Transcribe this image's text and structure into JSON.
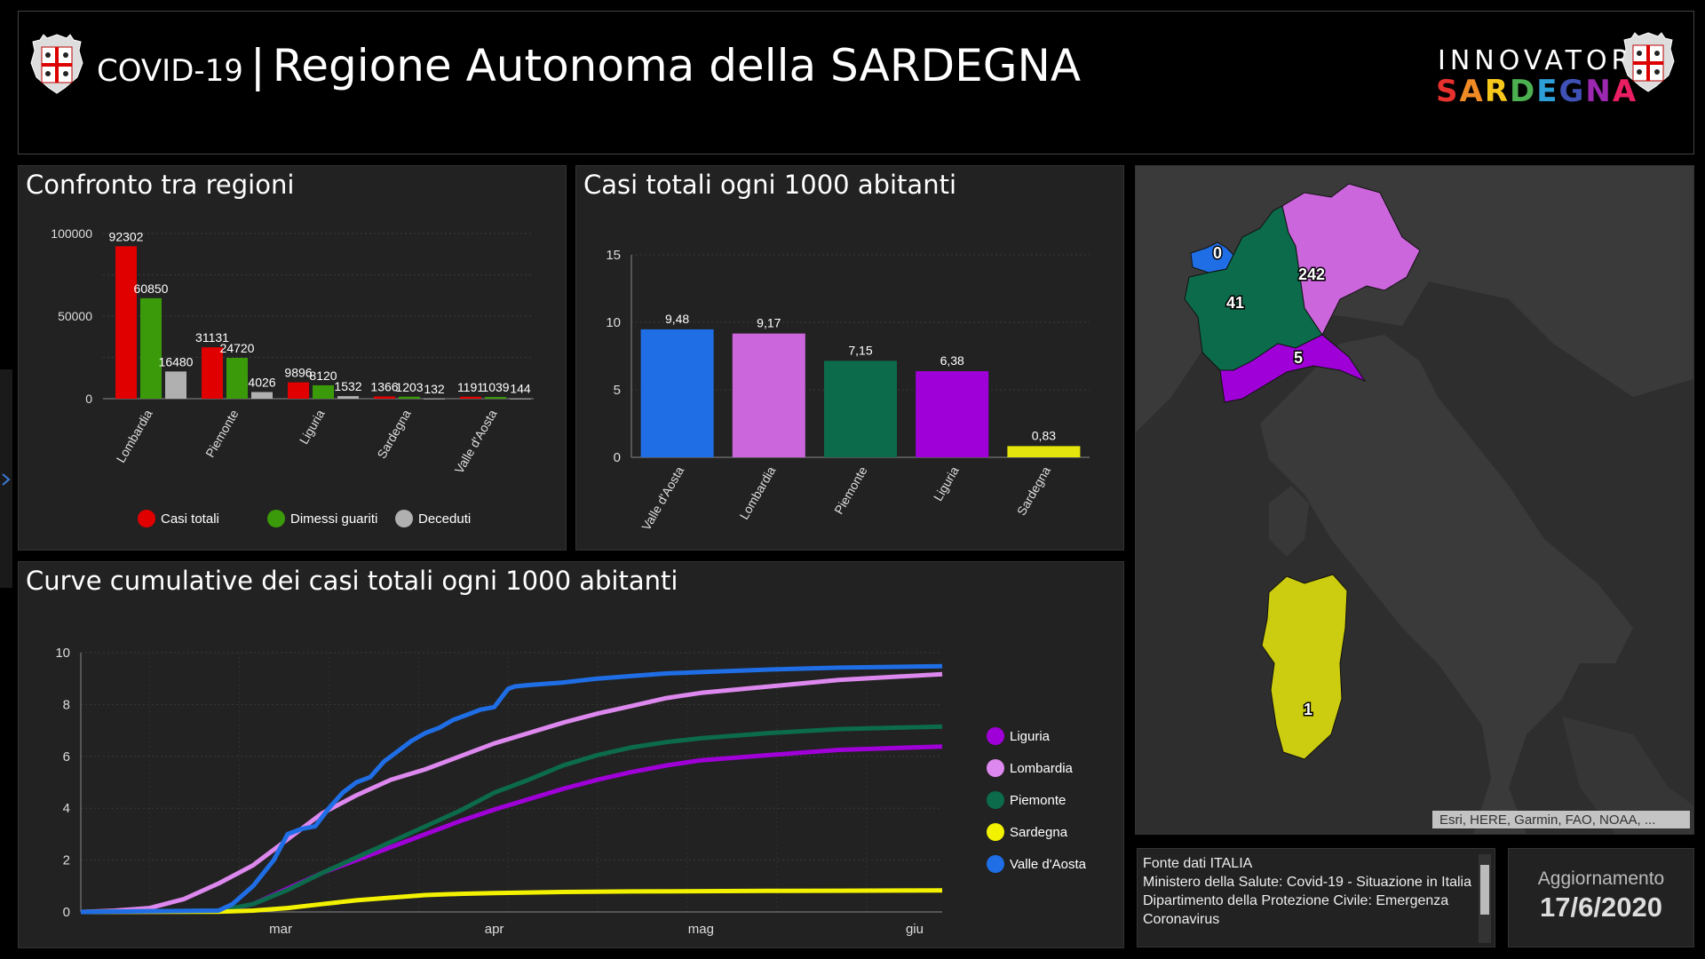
{
  "header": {
    "title_prefix": "COVID-19",
    "separator": "|",
    "title_main": "Regione Autonoma della SARDEGNA",
    "logo_top": "INNOVATORI",
    "logo_letters": [
      "S",
      "A",
      "R",
      "D",
      "E",
      "G",
      "N",
      "A"
    ],
    "logo_colors": [
      "#e6312d",
      "#f08a24",
      "#f7c81c",
      "#4caf50",
      "#2c9fd8",
      "#3f51b5",
      "#9c27b0",
      "#e91e63"
    ]
  },
  "panels": {
    "regions_title": "Confronto tra regioni",
    "per1000_title": "Casi totali ogni 1000 abitanti",
    "cumulative_title": "Curve cumulative dei casi totali ogni 1000 abitanti"
  },
  "chart_data": [
    {
      "type": "bar",
      "title": "Confronto tra regioni",
      "categories": [
        "Lombardia",
        "Piemonte",
        "Liguria",
        "Sardegna",
        "Valle d'Aosta"
      ],
      "series": [
        {
          "name": "Casi totali",
          "color": "#e00000",
          "values": [
            92302,
            31131,
            9896,
            1366,
            1191
          ]
        },
        {
          "name": "Dimessi guariti",
          "color": "#3a9a0a",
          "values": [
            60850,
            24720,
            8120,
            1203,
            1039
          ]
        },
        {
          "name": "Deceduti",
          "color": "#b0b0b0",
          "values": [
            16480,
            4026,
            1532,
            132,
            144
          ]
        }
      ],
      "yticks": [
        "0",
        "50000",
        "100000"
      ],
      "ylim": [
        0,
        100000
      ],
      "legend_position": "bottom"
    },
    {
      "type": "bar",
      "title": "Casi totali ogni 1000 abitanti",
      "categories": [
        "Valle d'Aosta",
        "Lombardia",
        "Piemonte",
        "Liguria",
        "Sardegna"
      ],
      "values": [
        9.48,
        9.17,
        7.15,
        6.38,
        0.83
      ],
      "labels": [
        "9,48",
        "9,17",
        "7,15",
        "6,38",
        "0,83"
      ],
      "colors": [
        "#1f6ee6",
        "#cc66dd",
        "#0b6b4a",
        "#a000d8",
        "#e5e50e"
      ],
      "yticks": [
        "0",
        "5",
        "10",
        "15"
      ],
      "ylim": [
        0,
        15
      ]
    },
    {
      "type": "line",
      "title": "Curve cumulative dei casi totali ogni 1000 abitanti",
      "xticks": [
        "mar",
        "apr",
        "mag",
        "giu"
      ],
      "xtick_days": [
        29,
        60,
        90,
        121
      ],
      "xlim": [
        0,
        125
      ],
      "yticks": [
        "0",
        "2",
        "4",
        "6",
        "8",
        "10"
      ],
      "ylim": [
        0,
        10
      ],
      "legend_position": "right",
      "series": [
        {
          "name": "Liguria",
          "color": "#a000d8",
          "x": [
            0,
            20,
            25,
            30,
            35,
            40,
            45,
            50,
            55,
            60,
            65,
            70,
            75,
            80,
            85,
            90,
            100,
            110,
            125
          ],
          "y": [
            0,
            0.02,
            0.3,
            0.9,
            1.5,
            2.0,
            2.5,
            3.0,
            3.5,
            3.95,
            4.35,
            4.75,
            5.1,
            5.4,
            5.65,
            5.85,
            6.05,
            6.25,
            6.38
          ]
        },
        {
          "name": "Lombardia",
          "color": "#dd88ee",
          "x": [
            0,
            5,
            10,
            15,
            20,
            25,
            30,
            35,
            40,
            45,
            50,
            55,
            60,
            65,
            70,
            75,
            80,
            85,
            90,
            100,
            110,
            125
          ],
          "y": [
            0,
            0.05,
            0.15,
            0.5,
            1.1,
            1.8,
            2.8,
            3.8,
            4.5,
            5.1,
            5.5,
            6.0,
            6.5,
            6.9,
            7.3,
            7.65,
            7.95,
            8.25,
            8.45,
            8.7,
            8.95,
            9.17
          ]
        },
        {
          "name": "Piemonte",
          "color": "#0b6b4a",
          "x": [
            0,
            20,
            25,
            30,
            35,
            40,
            45,
            50,
            55,
            60,
            65,
            70,
            75,
            80,
            85,
            90,
            100,
            110,
            125
          ],
          "y": [
            0,
            0.05,
            0.3,
            0.85,
            1.5,
            2.1,
            2.7,
            3.3,
            3.9,
            4.6,
            5.1,
            5.65,
            6.05,
            6.35,
            6.55,
            6.7,
            6.9,
            7.05,
            7.15
          ]
        },
        {
          "name": "Sardegna",
          "color": "#f2f200",
          "x": [
            0,
            20,
            25,
            30,
            35,
            40,
            45,
            50,
            55,
            60,
            70,
            80,
            90,
            100,
            110,
            125
          ],
          "y": [
            0,
            0.01,
            0.05,
            0.15,
            0.3,
            0.45,
            0.55,
            0.65,
            0.7,
            0.73,
            0.77,
            0.79,
            0.8,
            0.81,
            0.82,
            0.83
          ]
        },
        {
          "name": "Valle d'Aosta",
          "color": "#1f6ee6",
          "x": [
            0,
            20,
            22,
            25,
            28,
            30,
            32,
            34,
            36,
            38,
            40,
            42,
            44,
            46,
            48,
            50,
            52,
            54,
            56,
            58,
            60,
            62,
            63,
            65,
            70,
            75,
            80,
            85,
            90,
            100,
            110,
            125
          ],
          "y": [
            0,
            0.05,
            0.3,
            1.0,
            2.0,
            3.0,
            3.2,
            3.3,
            4.0,
            4.6,
            5.0,
            5.2,
            5.8,
            6.2,
            6.6,
            6.9,
            7.1,
            7.4,
            7.6,
            7.8,
            7.9,
            8.6,
            8.7,
            8.75,
            8.85,
            9.0,
            9.1,
            9.2,
            9.25,
            9.35,
            9.42,
            9.48
          ]
        }
      ]
    }
  ],
  "map": {
    "labels": [
      {
        "text": "0"
      },
      {
        "text": "242"
      },
      {
        "text": "41"
      },
      {
        "text": "5"
      },
      {
        "text": "1"
      }
    ],
    "attribution": "Esri, HERE, Garmin, FAO, NOAA, ..."
  },
  "source": {
    "lines": [
      "Fonte dati ITALIA",
      "Ministero della Salute: Covid-19 - Situazione in Italia",
      "Dipartimento della Protezione Civile: Emergenza Coronavirus"
    ]
  },
  "update": {
    "label": "Aggiornamento",
    "date": "17/6/2020"
  }
}
